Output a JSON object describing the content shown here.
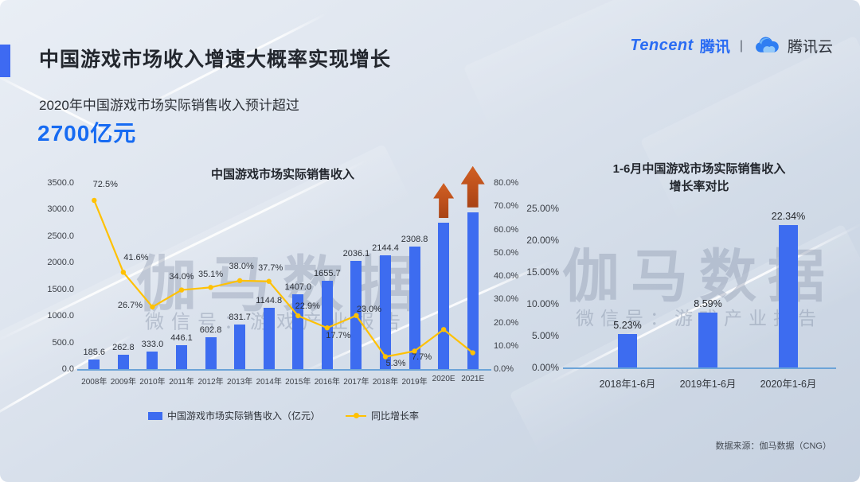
{
  "header": {
    "title": "中国游戏市场收入增速大概率实现增长",
    "subtitle": "2020年中国游戏市场实际销售收入预计超过",
    "highlight": "2700亿元"
  },
  "brand": {
    "tencent_en": "Tencent",
    "tencent_cn": "腾讯",
    "divider": "|",
    "cloud_name": "腾讯云"
  },
  "watermark": {
    "main": "伽马数据",
    "sub": "微信号：游戏产业报告"
  },
  "footer": {
    "source": "数据来源：伽马数据（CNG）"
  },
  "colors": {
    "accent_blue": "#3E6AF2",
    "bar_blue": "#3D6CF0",
    "line_gold": "#FFC103",
    "arrow_orange": "#BC4F1B",
    "highlight_blue": "#176BF2"
  },
  "chart_data": [
    {
      "type": "bar+line",
      "title": "中国游戏市场实际销售收入",
      "categories": [
        "2008年",
        "2009年",
        "2010年",
        "2011年",
        "2012年",
        "2013年",
        "2014年",
        "2015年",
        "2016年",
        "2017年",
        "2018年",
        "2019年",
        "2020E",
        "2021E"
      ],
      "series": [
        {
          "name": "中国游戏市场实际销售收入（亿元）",
          "type": "bar",
          "axis": "left",
          "values": [
            185.6,
            262.8,
            333.0,
            446.1,
            602.8,
            831.7,
            1144.8,
            1407.0,
            1655.7,
            2036.1,
            2144.4,
            2308.8,
            2750,
            2950
          ],
          "data_labels": [
            "185.6",
            "262.8",
            "333.0",
            "446.1",
            "602.8",
            "831.7",
            "1144.8",
            "1407.0",
            "1655.7",
            "2036.1",
            "2144.4",
            "2308.8",
            "",
            ""
          ]
        },
        {
          "name": "同比增长率",
          "type": "line",
          "axis": "right",
          "values": [
            72.5,
            41.6,
            26.7,
            34.0,
            35.1,
            38.0,
            37.7,
            22.9,
            17.7,
            23.0,
            5.3,
            7.7,
            17.0,
            7.0
          ],
          "data_labels": [
            "72.5%",
            "41.6%",
            "26.7%",
            "34.0%",
            "35.1%",
            "38.0%",
            "37.7%",
            "22.9%",
            "17.7%",
            "23.0%",
            "5.3%",
            "7.7%",
            "",
            ""
          ]
        }
      ],
      "left_axis": {
        "min": 0,
        "max": 3500,
        "step": 500,
        "tick_labels": [
          "0.0",
          "500.0",
          "1000.0",
          "1500.0",
          "2000.0",
          "2500.0",
          "3000.0",
          "3500.0"
        ]
      },
      "right_axis": {
        "min": 0,
        "max": 80,
        "step": 10,
        "tick_labels": [
          "0.0%",
          "10.0%",
          "20.0%",
          "30.0%",
          "40.0%",
          "50.0%",
          "60.0%",
          "70.0%",
          "80.0%"
        ]
      },
      "annotations": [
        {
          "type": "up-arrow",
          "category": "2020E"
        },
        {
          "type": "up-arrow",
          "category": "2021E"
        }
      ],
      "legend_position": "bottom"
    },
    {
      "type": "bar",
      "title_lines": [
        "1-6月中国游戏市场实际销售收入",
        "增长率对比"
      ],
      "categories": [
        "2018年1-6月",
        "2019年1-6月",
        "2020年1-6月"
      ],
      "values": [
        5.23,
        8.59,
        22.34
      ],
      "data_labels": [
        "5.23%",
        "8.59%",
        "22.34%"
      ],
      "y_axis": {
        "min": 0,
        "max": 25,
        "step": 5,
        "tick_labels": [
          "0.00%",
          "5.00%",
          "10.00%",
          "15.00%",
          "20.00%",
          "25.00%"
        ]
      },
      "grid": false,
      "legend": "none"
    }
  ]
}
